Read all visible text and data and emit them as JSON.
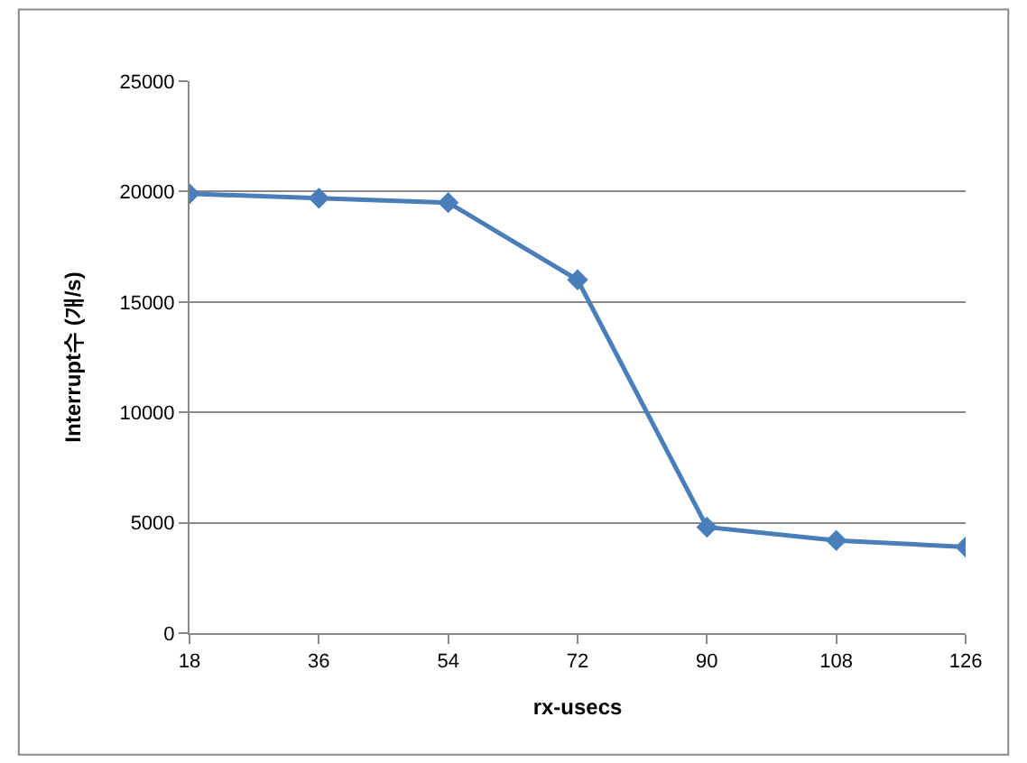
{
  "chart_data": {
    "type": "line",
    "xlabel": "rx-usecs",
    "ylabel": "Interrupt수 (개/s)",
    "categories": [
      "18",
      "36",
      "54",
      "72",
      "90",
      "108",
      "126"
    ],
    "series": [
      {
        "color": "#4a7ebb",
        "values": [
          19900,
          19700,
          19500,
          16000,
          4800,
          4200,
          3900
        ]
      }
    ],
    "ylim": [
      0,
      25000
    ],
    "yticks": [
      0,
      5000,
      10000,
      15000,
      20000,
      25000
    ],
    "grid": "y",
    "marker": "diamond",
    "line_style": "solid"
  }
}
